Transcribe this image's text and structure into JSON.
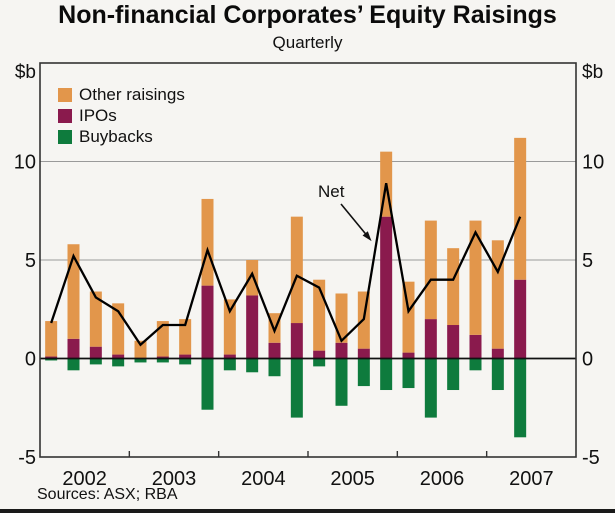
{
  "title": "Non-financial Corporates’ Equity Raisings",
  "subtitle": "Quarterly",
  "axis": {
    "unit_left": "$b",
    "unit_right": "$b",
    "y_ticks": [
      10,
      5,
      0,
      -5
    ],
    "x_years": [
      "2002",
      "2003",
      "2004",
      "2005",
      "2006",
      "2007"
    ]
  },
  "legend": {
    "items": [
      {
        "label": "Other raisings",
        "color": "#e2964b"
      },
      {
        "label": "IPOs",
        "color": "#8a1a4d"
      },
      {
        "label": "Buybacks",
        "color": "#0e7b3d"
      }
    ]
  },
  "net_label": "Net",
  "footer": {
    "sources": "Sources: ASX; RBA"
  },
  "colors": {
    "other": "#e2964b",
    "ipo": "#8a1a4d",
    "buyback": "#0e7b3d",
    "net_line": "#000000",
    "grid": "#9a9a9a",
    "frame": "#333333",
    "zero_line": "#111111",
    "background": "#f6f5f2"
  },
  "chart_data": {
    "type": "bar",
    "stacked": true,
    "title": "Non-financial Corporates’ Equity Raisings",
    "subtitle": "Quarterly",
    "ylabel": "$b",
    "ylim": [
      -5,
      15
    ],
    "grid": true,
    "legend_position": "top-left",
    "x_years": [
      "2002",
      "2003",
      "2004",
      "2005",
      "2006",
      "2007"
    ],
    "quarters_on_axis": 24,
    "categories": [
      "2002 Q1",
      "2002 Q2",
      "2002 Q3",
      "2002 Q4",
      "2003 Q1",
      "2003 Q2",
      "2003 Q3",
      "2003 Q4",
      "2004 Q1",
      "2004 Q2",
      "2004 Q3",
      "2004 Q4",
      "2005 Q1",
      "2005 Q2",
      "2005 Q3",
      "2005 Q4",
      "2006 Q1",
      "2006 Q2",
      "2006 Q3",
      "2006 Q4",
      "2007 Q1",
      "2007 Q2"
    ],
    "series": [
      {
        "name": "Other raisings",
        "type": "bar",
        "color": "#e2964b",
        "values": [
          1.8,
          4.8,
          2.8,
          2.6,
          0.9,
          1.8,
          1.8,
          4.4,
          2.8,
          1.8,
          1.5,
          5.4,
          3.6,
          2.5,
          2.9,
          3.3,
          3.6,
          5.0,
          3.9,
          5.8,
          5.5,
          7.2
        ]
      },
      {
        "name": "IPOs",
        "type": "bar",
        "color": "#8a1a4d",
        "values": [
          0.1,
          1.0,
          0.6,
          0.2,
          0.0,
          0.1,
          0.2,
          3.7,
          0.2,
          3.2,
          0.8,
          1.8,
          0.4,
          0.8,
          0.5,
          7.2,
          0.3,
          2.0,
          1.7,
          1.2,
          0.5,
          4.0
        ]
      },
      {
        "name": "Buybacks",
        "type": "bar",
        "color": "#0e7b3d",
        "values": [
          -0.1,
          -0.6,
          -0.3,
          -0.4,
          -0.2,
          -0.2,
          -0.3,
          -2.6,
          -0.6,
          -0.7,
          -0.9,
          -3.0,
          -0.4,
          -2.4,
          -1.4,
          -1.6,
          -1.5,
          -3.0,
          -1.6,
          -0.6,
          -1.6,
          -4.0
        ]
      },
      {
        "name": "Net",
        "type": "line",
        "color": "#000000",
        "values": [
          1.8,
          5.2,
          3.1,
          2.4,
          0.7,
          1.7,
          1.7,
          5.5,
          2.4,
          4.3,
          1.4,
          4.2,
          3.6,
          0.9,
          2.0,
          8.9,
          2.4,
          4.0,
          4.0,
          6.4,
          4.4,
          7.2
        ]
      }
    ]
  }
}
